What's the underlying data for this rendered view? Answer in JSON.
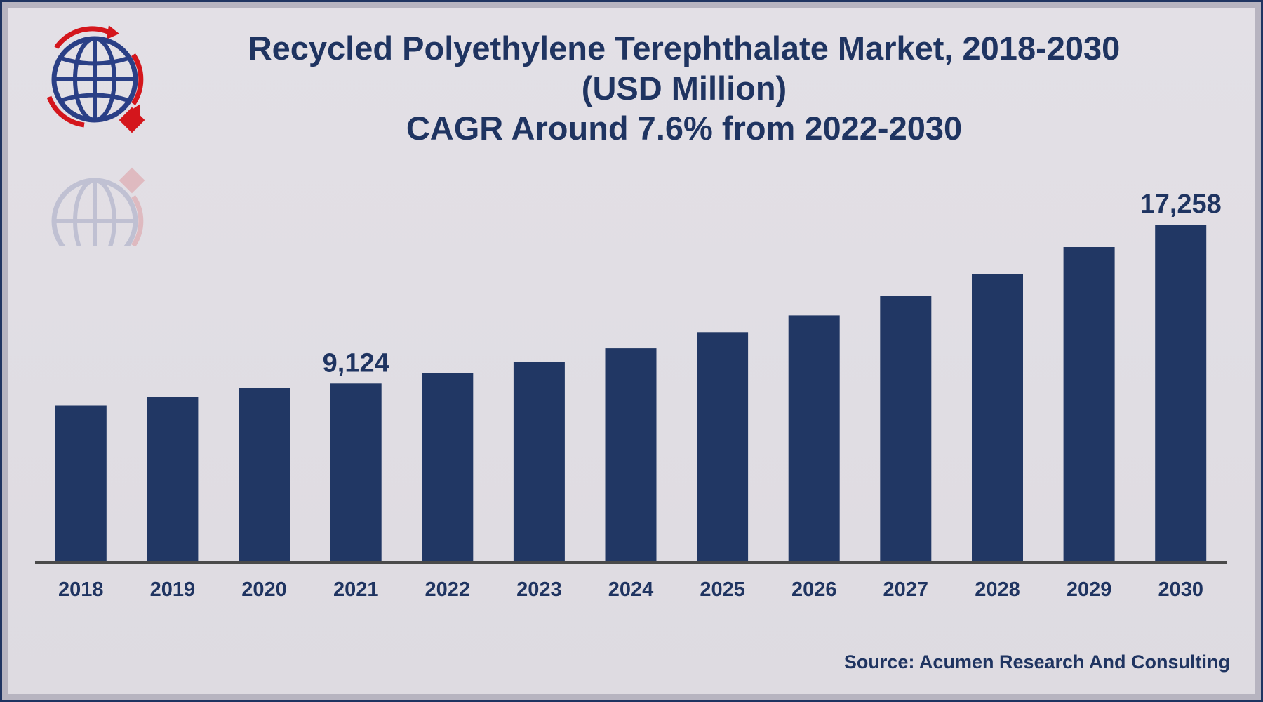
{
  "colors": {
    "bar": "#213764",
    "text": "#1f3461",
    "axis": "#4a4a4a",
    "logo_blue": "#2a3f86",
    "logo_red": "#d4161c"
  },
  "logo": {
    "icon": "globe-recycle-logo"
  },
  "header": {
    "title_line1": "Recycled Polyethylene Terephthalate Market, 2018-2030",
    "title_line2": "(USD Million)",
    "title_line3": "CAGR Around 7.6% from 2022-2030"
  },
  "chart_data": {
    "type": "bar",
    "title": "Recycled Polyethylene Terephthalate Market, 2018-2030 (USD Million) CAGR Around 7.6% from 2022-2030",
    "xlabel": "",
    "ylabel": "",
    "categories": [
      "2018",
      "2019",
      "2020",
      "2021",
      "2022",
      "2023",
      "2024",
      "2025",
      "2026",
      "2027",
      "2028",
      "2029",
      "2030"
    ],
    "values": [
      8000,
      8450,
      8900,
      9124,
      9650,
      10230,
      10930,
      11750,
      12610,
      13620,
      14720,
      16110,
      17258
    ],
    "data_labels": [
      {
        "category": "2021",
        "text": "9,124"
      },
      {
        "category": "2030",
        "text": "17,258"
      }
    ],
    "ylim": [
      0,
      18000
    ],
    "grid": false,
    "legend": "none"
  },
  "footer": {
    "source": "Source: Acumen Research And Consulting"
  }
}
